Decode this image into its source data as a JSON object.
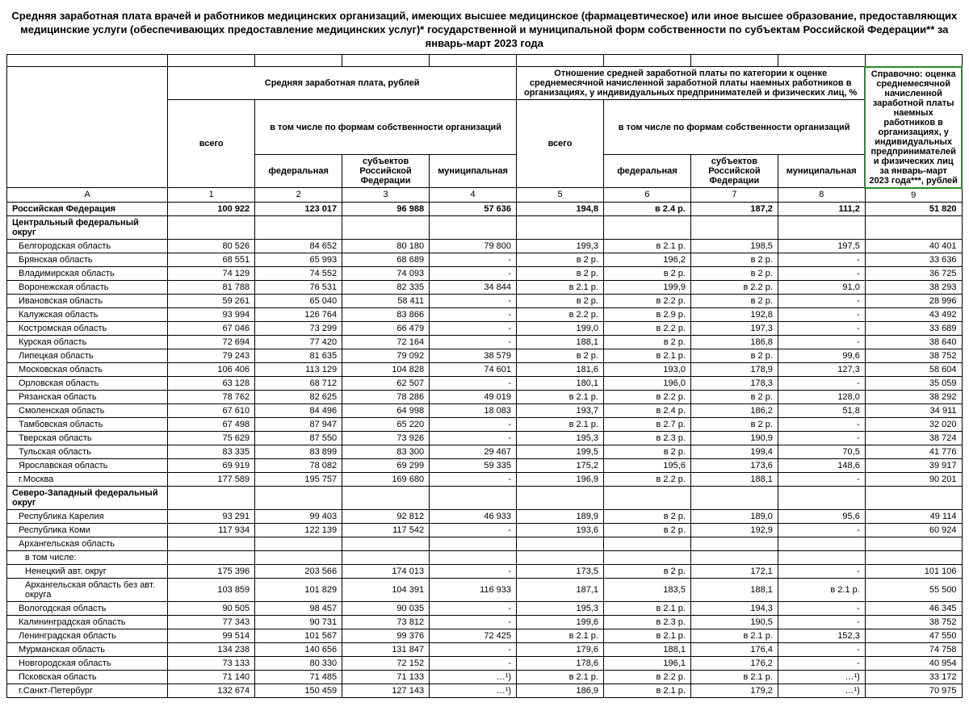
{
  "title": "Средняя заработная плата врачей и работников медицинских организаций, имеющих высшее медицинское (фармацевтическое) или иное высшее образование, предоставляющих медицинские услуги (обеспечивающих предоставление медицинских услуг)* государственной и муниципальной форм собственности по субъектам Российской Федерации** за январь-март 2023 года",
  "headers": {
    "salary_group": "Средняя заработная плата, рублей",
    "ratio_group": "Отношение средней заработной платы по категории к оценке среднемесячной начисленной заработной платы наемных работников в организациях, у индивидуальных предпринимателей и физических лиц, %",
    "forms": "в том числе по формам собственности организаций",
    "total": "всего",
    "federal": "федеральная",
    "subjects": "субъектов Российской Федерации",
    "municipal": "муниципальная",
    "reference": "Справочно: оценка среднемесячной начисленной заработной платы наемных работников в организациях, у индивидуальных предпринимателей и физических лиц за январь-март 2023 года***, рублей",
    "col_letter": "А",
    "col_nums": [
      "1",
      "2",
      "3",
      "4",
      "5",
      "6",
      "7",
      "8",
      "9"
    ]
  },
  "rows": [
    {
      "type": "bold",
      "name": "Российская Федерация",
      "v": [
        "100 922",
        "123 017",
        "96 988",
        "57 636",
        "194,8",
        "в 2.4 р.",
        "187,2",
        "111,2",
        "51 820"
      ]
    },
    {
      "type": "bold",
      "name": "Центральный федеральный округ",
      "v": [
        "",
        "",
        "",
        "",
        "",
        "",
        "",
        "",
        ""
      ]
    },
    {
      "type": "plain",
      "indent": 1,
      "name": "Белгородская область",
      "v": [
        "80 526",
        "84 652",
        "80 180",
        "79 800",
        "199,3",
        "в 2.1 р.",
        "198,5",
        "197,5",
        "40 401"
      ]
    },
    {
      "type": "plain",
      "indent": 1,
      "name": "Брянская область",
      "v": [
        "68 551",
        "65 993",
        "68 689",
        "-",
        "в 2 р.",
        "196,2",
        "в 2 р.",
        "-",
        "33 636"
      ]
    },
    {
      "type": "plain",
      "indent": 1,
      "name": "Владимирская область",
      "v": [
        "74 129",
        "74 552",
        "74 093",
        "-",
        "в 2 р.",
        "в 2 р.",
        "в 2 р.",
        "-",
        "36 725"
      ]
    },
    {
      "type": "plain",
      "indent": 1,
      "name": "Воронежская область",
      "v": [
        "81 788",
        "76 531",
        "82 335",
        "34 844",
        "в 2.1 р.",
        "199,9",
        "в 2.2 р.",
        "91,0",
        "38 293"
      ]
    },
    {
      "type": "plain",
      "indent": 1,
      "name": "Ивановская область",
      "v": [
        "59 261",
        "65 040",
        "58 411",
        "-",
        "в 2 р.",
        "в 2.2 р.",
        "в 2 р.",
        "-",
        "28 996"
      ]
    },
    {
      "type": "plain",
      "indent": 1,
      "name": "Калужская область",
      "v": [
        "93 994",
        "126 764",
        "83 866",
        "-",
        "в 2.2 р.",
        "в 2.9 р.",
        "192,8",
        "-",
        "43 492"
      ]
    },
    {
      "type": "plain",
      "indent": 1,
      "name": "Костромская область",
      "v": [
        "67 046",
        "73 299",
        "66 479",
        "-",
        "199,0",
        "в 2.2 р.",
        "197,3",
        "-",
        "33 689"
      ]
    },
    {
      "type": "plain",
      "indent": 1,
      "name": "Курская область",
      "v": [
        "72 694",
        "77 420",
        "72 164",
        "-",
        "188,1",
        "в 2 р.",
        "186,8",
        "-",
        "38 640"
      ]
    },
    {
      "type": "plain",
      "indent": 1,
      "name": "Липецкая область",
      "v": [
        "79 243",
        "81 635",
        "79 092",
        "38 579",
        "в 2 р.",
        "в 2.1 р.",
        "в 2 р.",
        "99,6",
        "38 752"
      ]
    },
    {
      "type": "plain",
      "indent": 1,
      "name": "Московская область",
      "v": [
        "106 406",
        "113 129",
        "104 828",
        "74 601",
        "181,6",
        "193,0",
        "178,9",
        "127,3",
        "58 604"
      ]
    },
    {
      "type": "plain",
      "indent": 1,
      "name": "Орловская область",
      "v": [
        "63 128",
        "68 712",
        "62 507",
        "-",
        "180,1",
        "196,0",
        "178,3",
        "-",
        "35 059"
      ]
    },
    {
      "type": "plain",
      "indent": 1,
      "name": "Рязанская область",
      "v": [
        "78 762",
        "82 625",
        "78 286",
        "49 019",
        "в 2.1 р.",
        "в 2.2 р.",
        "в 2 р.",
        "128,0",
        "38 292"
      ]
    },
    {
      "type": "plain",
      "indent": 1,
      "name": "Смоленская область",
      "v": [
        "67 610",
        "84 496",
        "64 998",
        "18 083",
        "193,7",
        "в 2.4 р.",
        "186,2",
        "51,8",
        "34 911"
      ]
    },
    {
      "type": "plain",
      "indent": 1,
      "name": "Тамбовская область",
      "v": [
        "67 498",
        "87 947",
        "65 220",
        "-",
        "в 2.1 р.",
        "в 2.7 р.",
        "в 2 р.",
        "-",
        "32 020"
      ]
    },
    {
      "type": "plain",
      "indent": 1,
      "name": "Тверская область",
      "v": [
        "75 629",
        "87 550",
        "73 926",
        "-",
        "195,3",
        "в 2.3 р.",
        "190,9",
        "-",
        "38 724"
      ]
    },
    {
      "type": "plain",
      "indent": 1,
      "name": "Тульская область",
      "v": [
        "83 335",
        "83 899",
        "83 300",
        "29 467",
        "199,5",
        "в 2 р.",
        "199,4",
        "70,5",
        "41 776"
      ]
    },
    {
      "type": "plain",
      "indent": 1,
      "name": "Ярославская область",
      "v": [
        "69 919",
        "78 082",
        "69 299",
        "59 335",
        "175,2",
        "195,6",
        "173,6",
        "148,6",
        "39 917"
      ]
    },
    {
      "type": "plain",
      "indent": 1,
      "name": "г.Москва",
      "v": [
        "177 589",
        "195 757",
        "169 680",
        "-",
        "196,9",
        "в 2.2 р.",
        "188,1",
        "-",
        "90 201"
      ]
    },
    {
      "type": "bold",
      "name": "Северо-Западный федеральный округ",
      "v": [
        "",
        "",
        "",
        "",
        "",
        "",
        "",
        "",
        ""
      ]
    },
    {
      "type": "plain",
      "indent": 1,
      "name": "Республика Карелия",
      "v": [
        "93 291",
        "99 403",
        "92 812",
        "46 933",
        "189,9",
        "в 2 р.",
        "189,0",
        "95,6",
        "49 114"
      ]
    },
    {
      "type": "plain",
      "indent": 1,
      "name": "Республика Коми",
      "v": [
        "117 934",
        "122 139",
        "117 542",
        "-",
        "193,6",
        "в 2 р.",
        "192,9",
        "-",
        "60 924"
      ]
    },
    {
      "type": "plain",
      "indent": 1,
      "name": "Архангельская область",
      "v": [
        "",
        "",
        "",
        "",
        "",
        "",
        "",
        "",
        ""
      ]
    },
    {
      "type": "plain",
      "indent": 2,
      "name": "в том числе:",
      "v": [
        "",
        "",
        "",
        "",
        "",
        "",
        "",
        "",
        ""
      ]
    },
    {
      "type": "plain",
      "indent": 2,
      "name": "Ненецкий авт. округ",
      "v": [
        "175 396",
        "203 566",
        "174 013",
        "-",
        "173,5",
        "в 2 р.",
        "172,1",
        "-",
        "101 106"
      ]
    },
    {
      "type": "plain",
      "indent": 2,
      "name": "Архангельская область без авт. округа",
      "v": [
        "103 859",
        "101 829",
        "104 391",
        "116 933",
        "187,1",
        "183,5",
        "188,1",
        "в 2.1 р.",
        "55 500"
      ]
    },
    {
      "type": "plain",
      "indent": 1,
      "name": "Вологодская область",
      "v": [
        "90 505",
        "98 457",
        "90 035",
        "-",
        "195,3",
        "в 2.1 р.",
        "194,3",
        "-",
        "46 345"
      ]
    },
    {
      "type": "plain",
      "indent": 1,
      "name": "Калининградская область",
      "v": [
        "77 343",
        "90 731",
        "73 812",
        "-",
        "199,6",
        "в 2.3 р.",
        "190,5",
        "-",
        "38 752"
      ]
    },
    {
      "type": "plain",
      "indent": 1,
      "name": "Ленинградская область",
      "v": [
        "99 514",
        "101 567",
        "99 376",
        "72 425",
        "в 2.1 р.",
        "в 2.1 р.",
        "в 2.1 р.",
        "152,3",
        "47 550"
      ]
    },
    {
      "type": "plain",
      "indent": 1,
      "name": "Мурманская область",
      "v": [
        "134 238",
        "140 656",
        "131 847",
        "-",
        "179,6",
        "188,1",
        "176,4",
        "-",
        "74 758"
      ]
    },
    {
      "type": "plain",
      "indent": 1,
      "name": "Новгородская область",
      "v": [
        "73 133",
        "80 330",
        "72 152",
        "-",
        "178,6",
        "196,1",
        "176,2",
        "-",
        "40 954"
      ]
    },
    {
      "type": "plain",
      "indent": 1,
      "name": "Псковская область",
      "v": [
        "71 140",
        "71 485",
        "71 133",
        "…¹)",
        "в 2.1 р.",
        "в 2.2 р.",
        "в 2.1 р.",
        "…¹)",
        "33 172"
      ]
    },
    {
      "type": "plain",
      "indent": 1,
      "name": "г.Санкт-Петербург",
      "v": [
        "132 674",
        "150 459",
        "127 143",
        "…¹)",
        "186,9",
        "в 2.1 р.",
        "179,2",
        "…¹)",
        "70 975"
      ]
    }
  ]
}
